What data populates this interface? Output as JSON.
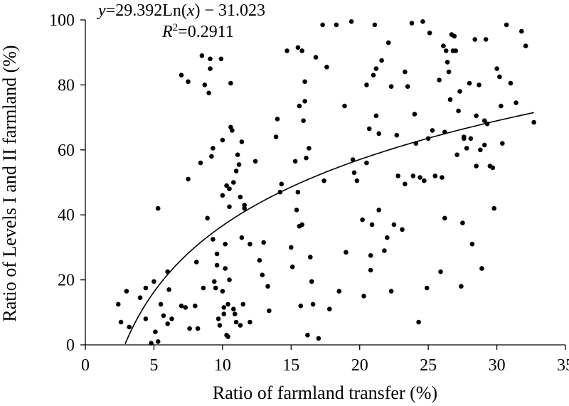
{
  "chart_data": {
    "type": "scatter",
    "title": "",
    "xlabel": "Ratio of farmland transfer (%)",
    "ylabel": "Ratio of Levels I and II farmland (%)",
    "xlim": [
      0,
      35
    ],
    "ylim": [
      0,
      100
    ],
    "xticks": [
      "0",
      "5",
      "10",
      "15",
      "20",
      "25",
      "30",
      "35"
    ],
    "yticks": [
      "0",
      "20",
      "40",
      "60",
      "80",
      "100"
    ],
    "grid": false,
    "trendline": {
      "type": "logarithmic",
      "a": 29.392,
      "b": -31.023,
      "x_range": [
        2.9,
        32.7
      ],
      "equation_prefix": "y",
      "equation_rest": "=29.392Ln(",
      "equation_x": "x",
      "equation_suffix": ") − 31.023",
      "r2_prefix": "R",
      "r2_sup": "2",
      "r2_value": "=0.2911"
    },
    "points": [
      [
        2.4,
        12.5
      ],
      [
        2.6,
        7.0
      ],
      [
        3.0,
        16.5
      ],
      [
        3.2,
        5.5
      ],
      [
        4.0,
        14.5
      ],
      [
        4.4,
        17.5
      ],
      [
        4.4,
        8.0
      ],
      [
        4.8,
        0.5
      ],
      [
        5.0,
        19.5
      ],
      [
        5.1,
        4.0
      ],
      [
        5.3,
        42.0
      ],
      [
        5.3,
        1.0
      ],
      [
        5.5,
        12.5
      ],
      [
        5.7,
        9.0
      ],
      [
        6.0,
        22.5
      ],
      [
        6.0,
        6.5
      ],
      [
        6.1,
        17.0
      ],
      [
        6.3,
        8.0
      ],
      [
        7.0,
        83.0
      ],
      [
        7.0,
        12.0
      ],
      [
        7.3,
        11.5
      ],
      [
        7.5,
        81.0
      ],
      [
        7.5,
        51.0
      ],
      [
        7.6,
        5.0
      ],
      [
        8.0,
        12.0
      ],
      [
        8.1,
        25.5
      ],
      [
        8.2,
        5.0
      ],
      [
        8.4,
        56.0
      ],
      [
        8.5,
        89.0
      ],
      [
        8.6,
        17.5
      ],
      [
        8.7,
        80.0
      ],
      [
        8.9,
        39.0
      ],
      [
        9.0,
        77.5
      ],
      [
        9.1,
        88.0
      ],
      [
        9.1,
        85.0
      ],
      [
        9.2,
        58.0
      ],
      [
        9.3,
        60.5
      ],
      [
        9.3,
        32.5
      ],
      [
        9.4,
        19.5
      ],
      [
        9.5,
        17.5
      ],
      [
        9.6,
        28.0
      ],
      [
        9.6,
        24.5
      ],
      [
        9.7,
        8.0
      ],
      [
        9.8,
        6.0
      ],
      [
        9.9,
        88.0
      ],
      [
        10.0,
        63.0
      ],
      [
        10.0,
        46.0
      ],
      [
        10.0,
        16.5
      ],
      [
        10.1,
        11.5
      ],
      [
        10.1,
        9.5
      ],
      [
        10.2,
        31.0
      ],
      [
        10.2,
        23.5
      ],
      [
        10.3,
        49.0
      ],
      [
        10.3,
        3.0
      ],
      [
        10.4,
        12.5
      ],
      [
        10.4,
        2.5
      ],
      [
        10.5,
        48.0
      ],
      [
        10.5,
        42.5
      ],
      [
        10.5,
        20.0
      ],
      [
        10.6,
        67.0
      ],
      [
        10.6,
        80.5
      ],
      [
        10.7,
        66.0
      ],
      [
        10.8,
        50.0
      ],
      [
        10.8,
        11.0
      ],
      [
        10.9,
        9.5
      ],
      [
        11.0,
        53.5
      ],
      [
        11.0,
        7.0
      ],
      [
        11.1,
        58.5
      ],
      [
        11.2,
        55.5
      ],
      [
        11.3,
        45.5
      ],
      [
        11.3,
        6.0
      ],
      [
        11.4,
        62.5
      ],
      [
        11.4,
        33.0
      ],
      [
        11.5,
        12.5
      ],
      [
        11.6,
        43.0
      ],
      [
        11.6,
        42.0
      ],
      [
        12.0,
        31.0
      ],
      [
        12.0,
        7.0
      ],
      [
        12.4,
        56.5
      ],
      [
        12.7,
        26.0
      ],
      [
        12.9,
        21.5
      ],
      [
        13.0,
        31.5
      ],
      [
        13.3,
        18.0
      ],
      [
        13.4,
        10.5
      ],
      [
        13.9,
        64.0
      ],
      [
        14.0,
        69.5
      ],
      [
        14.2,
        47.0
      ],
      [
        14.3,
        49.5
      ],
      [
        14.7,
        90.5
      ],
      [
        15.0,
        30.0
      ],
      [
        15.1,
        24.0
      ],
      [
        15.3,
        56.5
      ],
      [
        15.4,
        41.5
      ],
      [
        15.5,
        91.5
      ],
      [
        15.5,
        47.0
      ],
      [
        15.6,
        73.5
      ],
      [
        15.6,
        36.5
      ],
      [
        15.7,
        12.0
      ],
      [
        15.8,
        90.5
      ],
      [
        15.8,
        37.0
      ],
      [
        15.9,
        69.0
      ],
      [
        16.0,
        81.0
      ],
      [
        16.0,
        75.0
      ],
      [
        16.1,
        57.5
      ],
      [
        16.2,
        3.0
      ],
      [
        16.3,
        60.5
      ],
      [
        16.4,
        27.0
      ],
      [
        16.5,
        19.5
      ],
      [
        16.6,
        12.5
      ],
      [
        16.8,
        88.5
      ],
      [
        17.0,
        2.0
      ],
      [
        17.3,
        98.5
      ],
      [
        17.4,
        50.5
      ],
      [
        17.6,
        85.5
      ],
      [
        17.8,
        11.0
      ],
      [
        18.3,
        98.5
      ],
      [
        18.5,
        16.5
      ],
      [
        18.9,
        73.5
      ],
      [
        19.0,
        28.5
      ],
      [
        19.4,
        99.5
      ],
      [
        19.5,
        57.0
      ],
      [
        19.6,
        53.0
      ],
      [
        19.8,
        50.5
      ],
      [
        20.2,
        38.5
      ],
      [
        20.3,
        15.0
      ],
      [
        20.5,
        80.0
      ],
      [
        20.5,
        56.0
      ],
      [
        20.7,
        66.5
      ],
      [
        20.8,
        23.0
      ],
      [
        20.8,
        27.5
      ],
      [
        20.9,
        37.0
      ],
      [
        21.0,
        83.0
      ],
      [
        21.1,
        98.5
      ],
      [
        21.2,
        70.5
      ],
      [
        21.2,
        85.0
      ],
      [
        21.4,
        65.0
      ],
      [
        21.4,
        41.5
      ],
      [
        21.6,
        87.5
      ],
      [
        21.8,
        29.0
      ],
      [
        22.0,
        33.0
      ],
      [
        22.1,
        93.0
      ],
      [
        22.3,
        79.5
      ],
      [
        22.3,
        16.5
      ],
      [
        22.5,
        37.0
      ],
      [
        22.7,
        64.5
      ],
      [
        22.8,
        52.0
      ],
      [
        23.1,
        35.5
      ],
      [
        23.3,
        84.0
      ],
      [
        23.3,
        49.5
      ],
      [
        23.5,
        79.5
      ],
      [
        23.8,
        99.0
      ],
      [
        23.9,
        52.0
      ],
      [
        24.0,
        71.0
      ],
      [
        24.1,
        62.0
      ],
      [
        24.3,
        7.0
      ],
      [
        24.4,
        51.5
      ],
      [
        24.6,
        99.5
      ],
      [
        24.7,
        50.5
      ],
      [
        24.9,
        17.5
      ],
      [
        25.0,
        63.5
      ],
      [
        25.1,
        96.0
      ],
      [
        25.3,
        66.0
      ],
      [
        25.5,
        52.0
      ],
      [
        25.8,
        81.5
      ],
      [
        25.9,
        22.5
      ],
      [
        26.0,
        51.5
      ],
      [
        26.1,
        92.0
      ],
      [
        26.2,
        65.5
      ],
      [
        26.2,
        39.0
      ],
      [
        26.3,
        90.5
      ],
      [
        26.4,
        87.0
      ],
      [
        26.5,
        84.0
      ],
      [
        26.6,
        75.5
      ],
      [
        26.7,
        95.5
      ],
      [
        26.8,
        90.5
      ],
      [
        26.9,
        95.0
      ],
      [
        27.0,
        90.5
      ],
      [
        27.1,
        58.5
      ],
      [
        27.2,
        72.0
      ],
      [
        27.3,
        78.0
      ],
      [
        27.4,
        18.0
      ],
      [
        27.5,
        37.5
      ],
      [
        27.6,
        64.0
      ],
      [
        27.6,
        63.5
      ],
      [
        27.8,
        60.5
      ],
      [
        28.0,
        80.5
      ],
      [
        28.1,
        63.5
      ],
      [
        28.2,
        31.0
      ],
      [
        28.4,
        94.0
      ],
      [
        28.5,
        70.5
      ],
      [
        28.5,
        55.0
      ],
      [
        28.7,
        80.0
      ],
      [
        28.8,
        60.0
      ],
      [
        28.9,
        23.5
      ],
      [
        29.1,
        69.0
      ],
      [
        29.1,
        61.5
      ],
      [
        29.2,
        94.0
      ],
      [
        29.3,
        68.0
      ],
      [
        29.5,
        55.0
      ],
      [
        29.7,
        54.5
      ],
      [
        29.8,
        42.0
      ],
      [
        30.0,
        85.0
      ],
      [
        30.2,
        82.5
      ],
      [
        30.3,
        73.5
      ],
      [
        30.4,
        62.0
      ],
      [
        30.7,
        98.5
      ],
      [
        31.0,
        80.5
      ],
      [
        31.4,
        74.5
      ],
      [
        31.8,
        96.5
      ],
      [
        32.1,
        92.0
      ],
      [
        32.7,
        68.5
      ]
    ]
  }
}
